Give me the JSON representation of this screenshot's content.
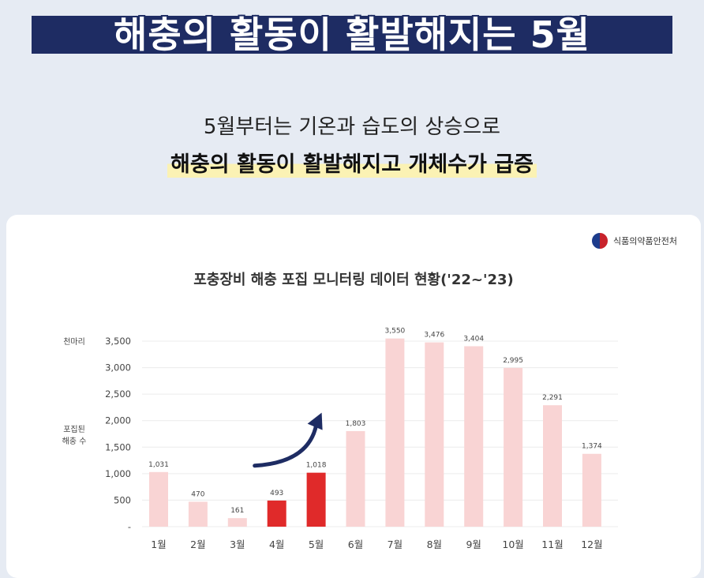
{
  "banner": {
    "title": "해충의 활동이 활발해지는 5월"
  },
  "subtitle": {
    "line1": "5월부터는 기온과 습도의 상승으로",
    "line2": "해충의 활동이 활발해지고 개체수가 급증"
  },
  "source": {
    "label": "식품의약품안전처",
    "icon": "government-emblem-icon"
  },
  "chart_data": {
    "type": "bar",
    "title": "포충장비 해충 포집 모니터링 데이터 현황('22~'23)",
    "ylabel_top": "천마리",
    "ylabel": "포집된 해충 수",
    "categories": [
      "1월",
      "2월",
      "3월",
      "4월",
      "5월",
      "6월",
      "7월",
      "8월",
      "9월",
      "10월",
      "11월",
      "12월"
    ],
    "values": [
      1031,
      470,
      161,
      493,
      1018,
      1803,
      3550,
      3476,
      3404,
      2995,
      2291,
      1374
    ],
    "value_labels": [
      "1,031",
      "470",
      "161",
      "493",
      "1,018",
      "1,803",
      "3,550",
      "3,476",
      "3,404",
      "2,995",
      "2,291",
      "1,374"
    ],
    "highlighted": [
      false,
      false,
      false,
      true,
      true,
      false,
      false,
      false,
      false,
      false,
      false,
      false
    ],
    "yticks": [
      0,
      500,
      1000,
      1500,
      2000,
      2500,
      3000,
      3500
    ],
    "ytick_labels": [
      "-",
      "500",
      "1,000",
      "1,500",
      "2,000",
      "2,500",
      "3,000",
      "3,500"
    ],
    "ylim": [
      0,
      3500
    ],
    "grid": true,
    "colors": {
      "bar": "#f9d4d4",
      "highlight": "#e02a2a",
      "arrow": "#1e2c63"
    },
    "annotation": "rising-arrow-icon"
  }
}
